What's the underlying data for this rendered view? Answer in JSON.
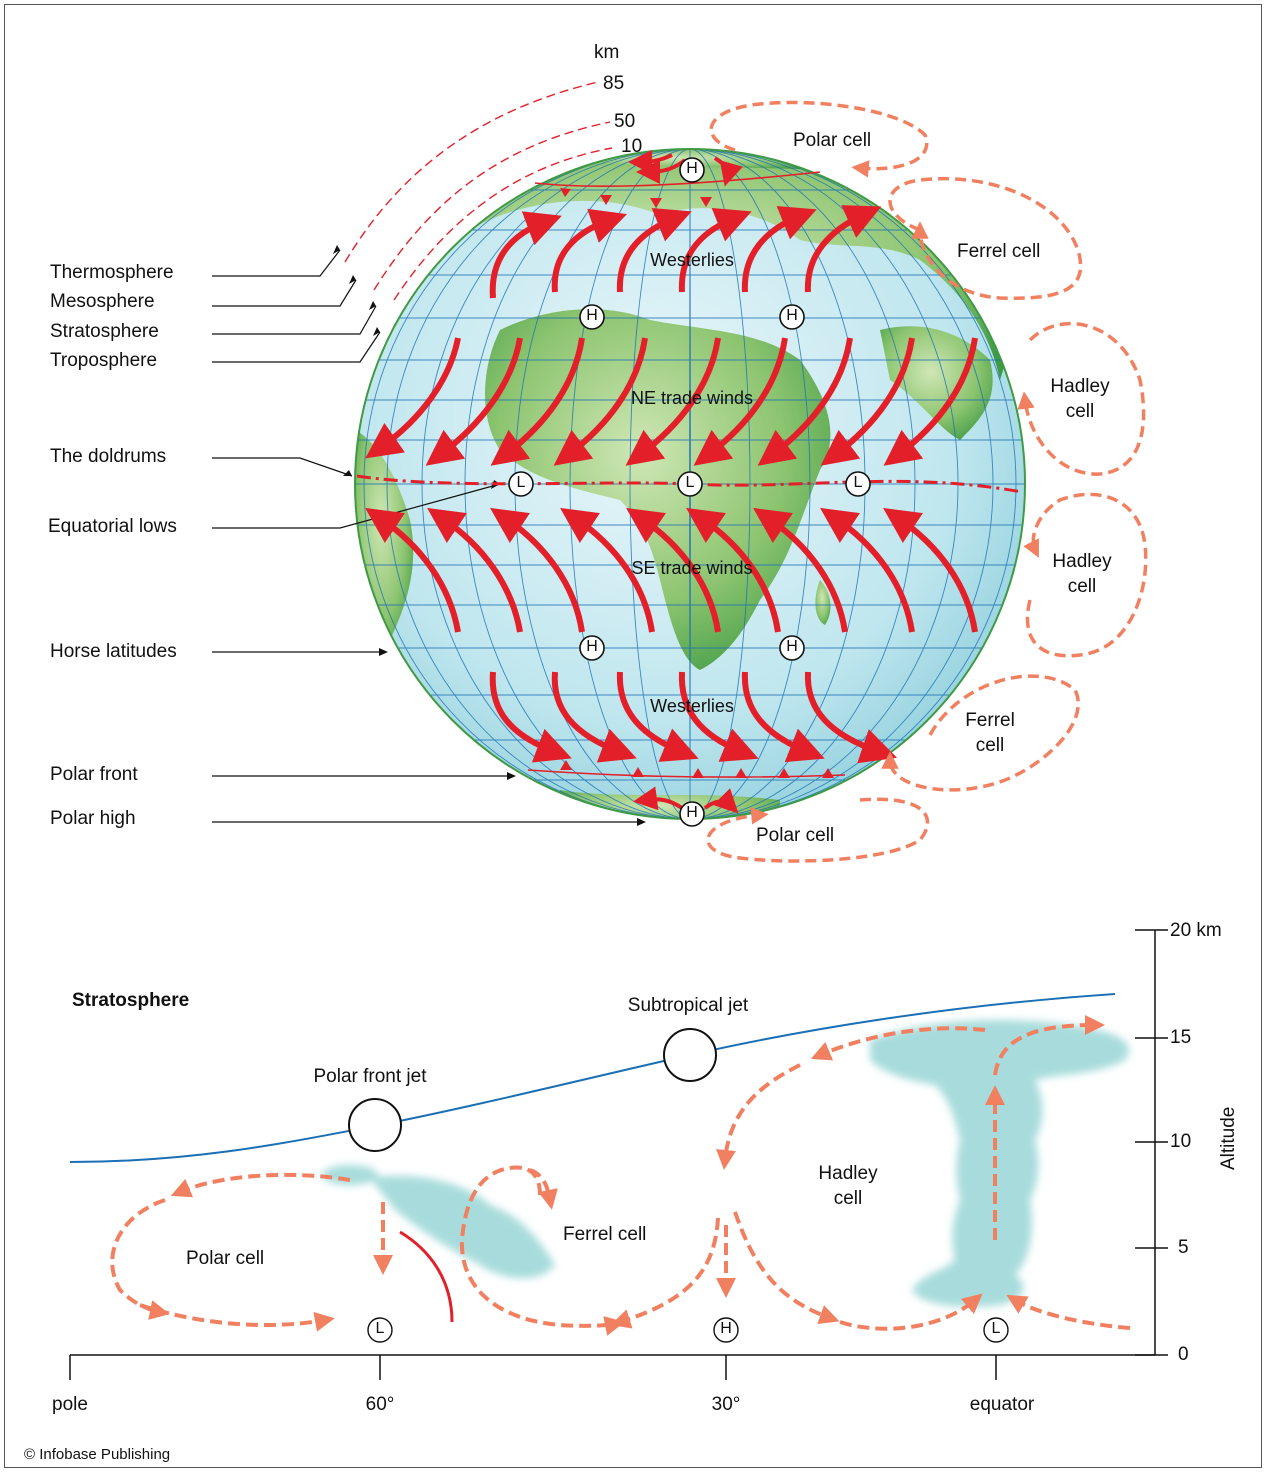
{
  "globe": {
    "alt_unit": "km",
    "alt_85": "85",
    "alt_50": "50",
    "alt_10": "10",
    "layers": [
      "Thermosphere",
      "Mesosphere",
      "Stratosphere",
      "Troposphere"
    ],
    "labels_left": {
      "doldrums": "The doldrums",
      "equatorial_lows": "Equatorial lows",
      "horse_latitudes": "Horse latitudes",
      "polar_front": "Polar front",
      "polar_high": "Polar high"
    },
    "cells_right": {
      "polar_top": "Polar cell",
      "ferrel_top": "Ferrel cell",
      "hadley_top": [
        "Hadley",
        "cell"
      ],
      "hadley_bottom": [
        "Hadley",
        "cell"
      ],
      "ferrel_bottom": [
        "Ferrel",
        "cell"
      ],
      "polar_bottom": "Polar cell"
    },
    "winds": {
      "westerlies_n": "Westerlies",
      "ne_trade": "NE trade winds",
      "se_trade": "SE trade winds",
      "westerlies_s": "Westerlies"
    },
    "pressure_high": "H",
    "pressure_low": "L"
  },
  "cross_section": {
    "stratosphere": "Stratosphere",
    "subtropical_jet": "Subtropical jet",
    "polar_front_jet": "Polar front jet",
    "hadley": [
      "Hadley",
      "cell"
    ],
    "ferrel": "Ferrel cell",
    "polar": "Polar cell",
    "pressure_low": "L",
    "pressure_high": "H",
    "x_ticks": [
      "pole",
      "60°",
      "30°",
      "equator"
    ],
    "y_ticks": [
      "20 km",
      "15",
      "10",
      "5",
      "0"
    ],
    "y_axis_label": "Altitude"
  },
  "credit": "© Infobase Publishing",
  "colors": {
    "wind_arrow": "#e3202a",
    "cell_loop": "#f08060",
    "ocean": "#bfe6ee",
    "land": "#5fae55",
    "grid": "#1a6fb5",
    "tropopause": "#1a6fb5",
    "cloud": "#a8dcdc"
  }
}
